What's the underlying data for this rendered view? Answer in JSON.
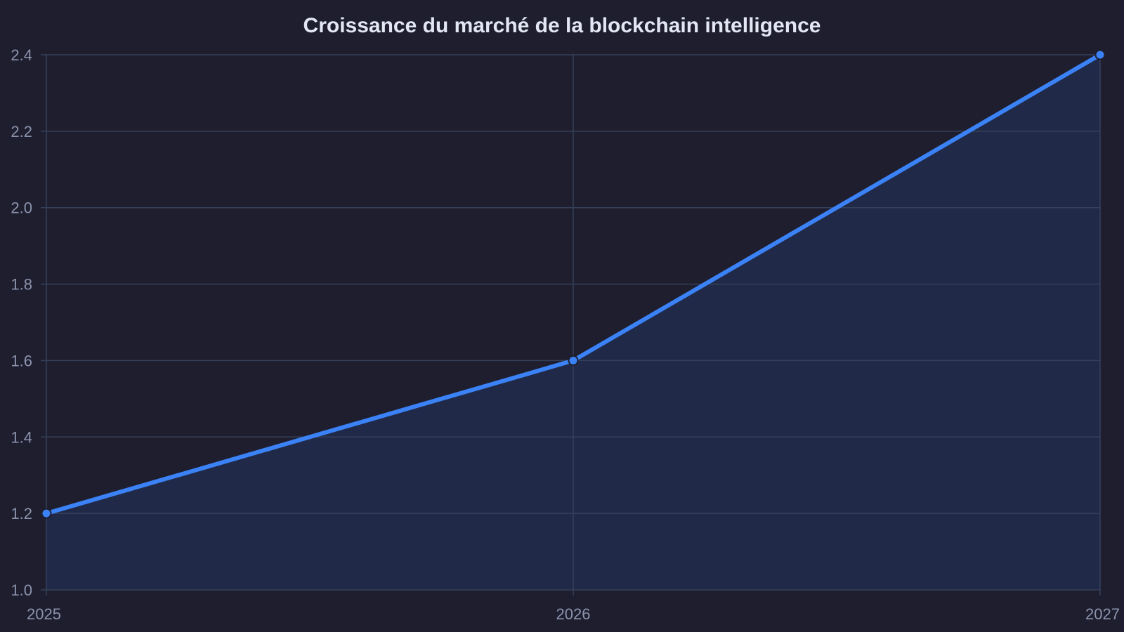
{
  "chart_data": {
    "type": "area",
    "title": "Croissance du marché de la blockchain intelligence",
    "xlabel": "",
    "ylabel": "",
    "x": [
      2025,
      2026,
      2027
    ],
    "x_tick_labels": [
      "2025",
      "2026",
      "2027"
    ],
    "series": [
      {
        "values": [
          1.2,
          1.6,
          2.4
        ]
      }
    ],
    "ylim": [
      1.0,
      2.4
    ],
    "y_ticks": [
      1.0,
      1.2,
      1.4,
      1.6,
      1.8,
      2.0,
      2.2,
      2.4
    ],
    "y_tick_labels": [
      "1.0",
      "1.2",
      "1.4",
      "1.6",
      "1.8",
      "2.0",
      "2.2",
      "2.4"
    ],
    "grid": true,
    "legend": "none",
    "colors": {
      "background": "#1e1e2e",
      "line": "#3b82f6",
      "fill": "#202a48",
      "grid": "#35405a",
      "tick_text": "#8c93ad",
      "title_text": "#e3e6f3"
    }
  }
}
